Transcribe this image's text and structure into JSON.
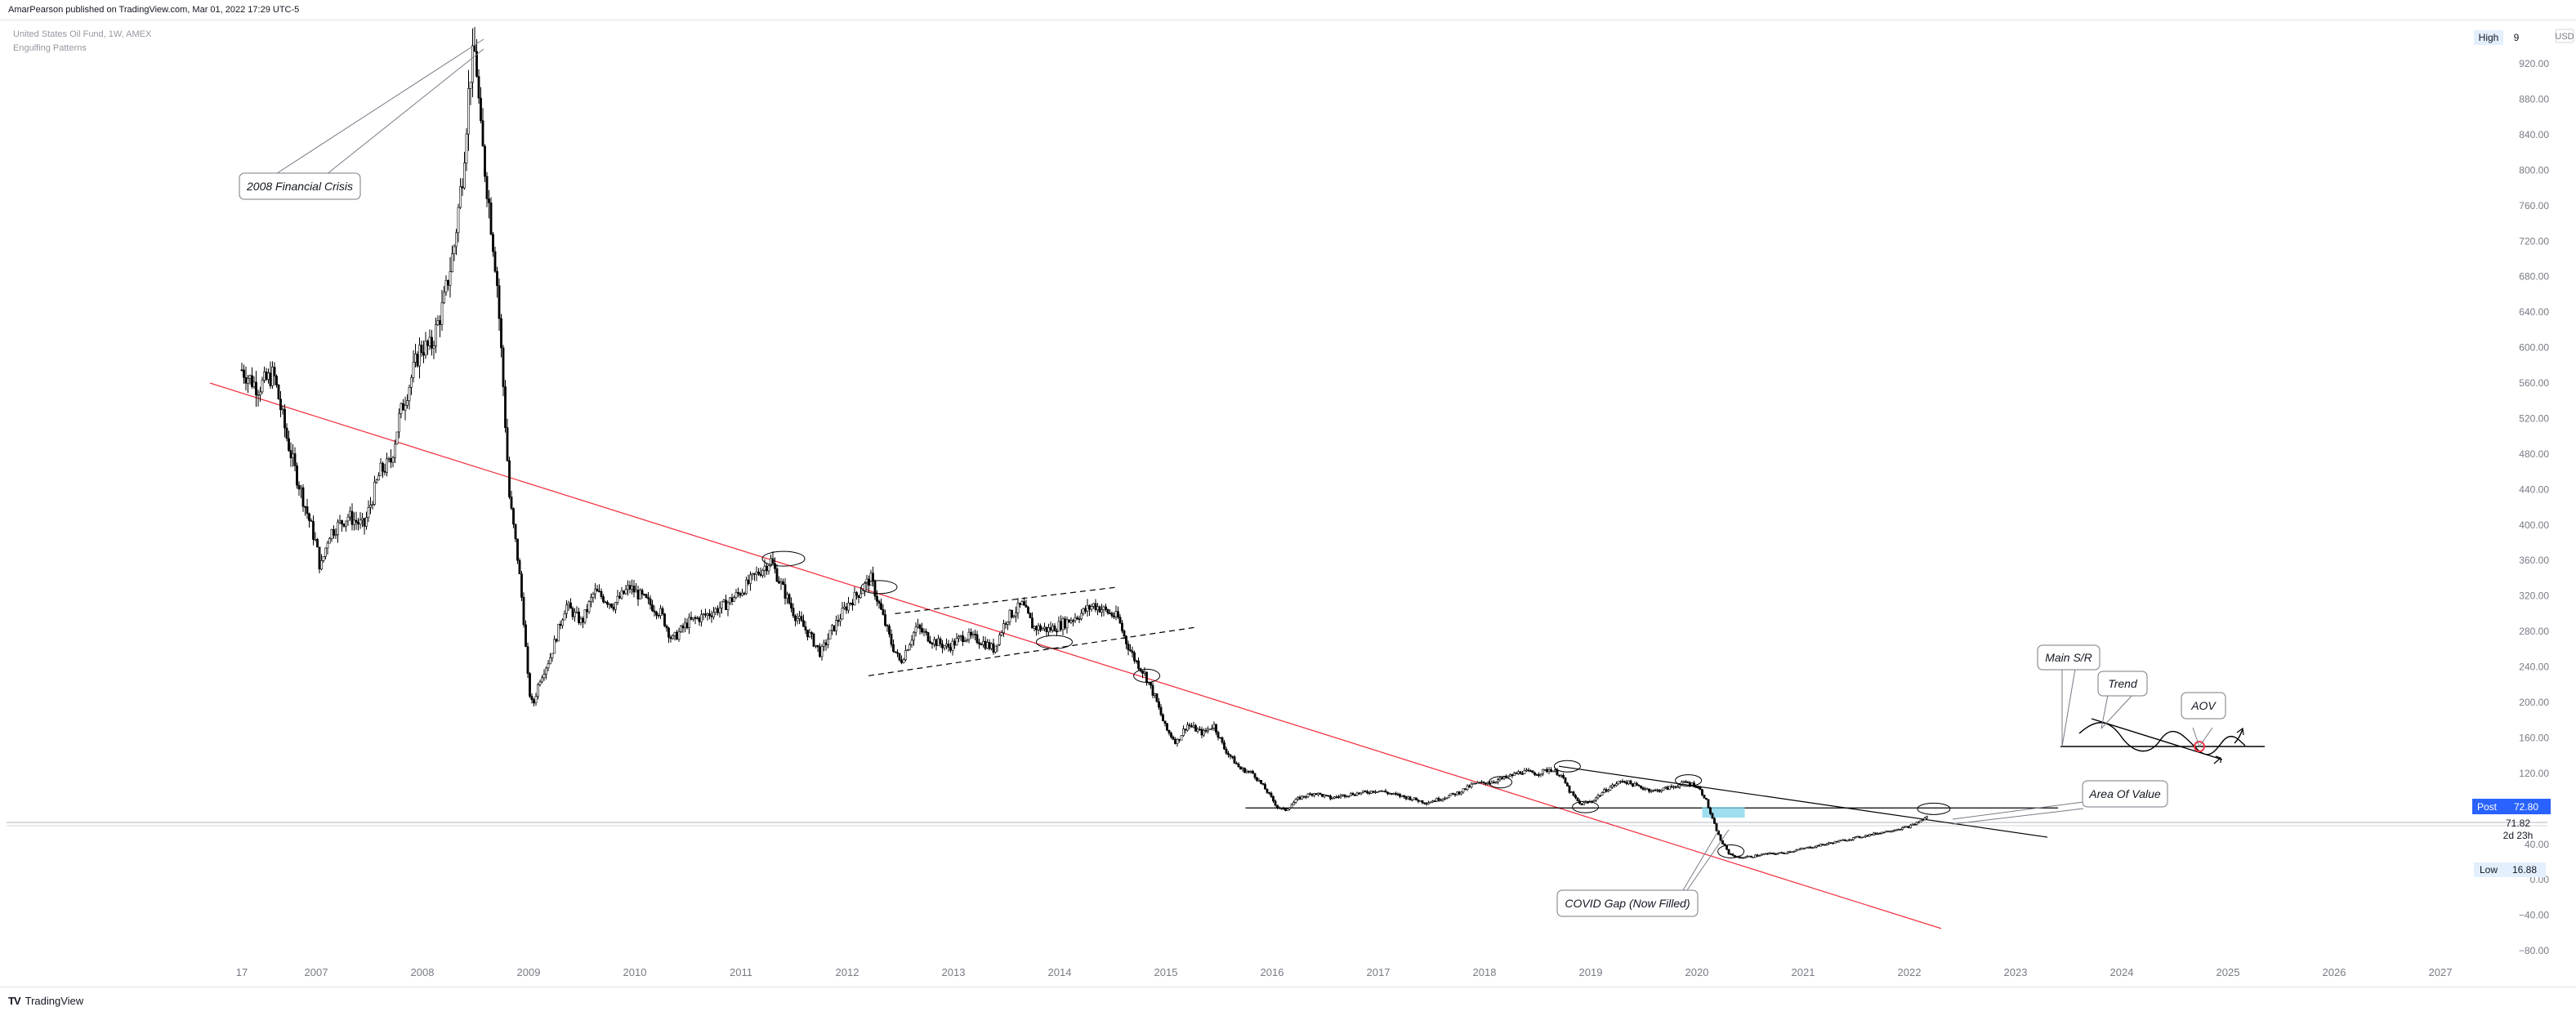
{
  "header": {
    "text": "AmarPearson published on TradingView.com, Mar 01, 2022 17:29 UTC-5"
  },
  "legend": {
    "symbol": "United States Oil Fund, 1W, AMEX",
    "indicator": "Engulfing Patterns"
  },
  "footer": {
    "brand": "TradingView",
    "logo": "TV"
  },
  "price_axis": {
    "currency": "USD",
    "high_label": "High",
    "high_value": "9",
    "post_label": "Post",
    "post_value": "72.80",
    "last_value": "71.82",
    "countdown": "2d 23h",
    "low_label": "Low",
    "low_value": "16.88"
  },
  "annotations": {
    "financial_crisis": "2008 Financial Crisis",
    "main_sr": "Main S/R",
    "trend": "Trend",
    "aov": "AOV",
    "area_of_value": "Area Of Value",
    "covid_gap": "COVID Gap (Now Filled)"
  },
  "colors": {
    "trendline": "#f23645",
    "candle": "#000000",
    "post_badge": "#2962ff",
    "gap_zone": "#7fd3ea",
    "axis_text": "#787b86",
    "badge_bg": "#e3effd"
  },
  "chart_data": {
    "type": "candlestick",
    "symbol": "USO",
    "timeframe": "1W",
    "x_ticks": [
      "17",
      "2007",
      "2008",
      "2009",
      "2010",
      "2011",
      "2012",
      "2013",
      "2014",
      "2015",
      "2016",
      "2017",
      "2018",
      "2019",
      "2020",
      "2021",
      "2022",
      "2023",
      "2024",
      "2025",
      "2026",
      "2027"
    ],
    "y_ticks": [
      920,
      880,
      840,
      800,
      760,
      720,
      680,
      640,
      600,
      560,
      520,
      480,
      440,
      400,
      360,
      320,
      280,
      240,
      200,
      160,
      120,
      40,
      0,
      -40,
      -80
    ],
    "y_tick_labels": [
      "920.00",
      "880.00",
      "840.00",
      "800.00",
      "760.00",
      "720.00",
      "680.00",
      "640.00",
      "600.00",
      "560.00",
      "520.00",
      "480.00",
      "440.00",
      "400.00",
      "360.00",
      "320.00",
      "280.00",
      "240.00",
      "200.00",
      "160.00",
      "120.00",
      "40.00",
      "0.00",
      "−40.00",
      "−80.00"
    ],
    "ylim": [
      -85,
      945
    ],
    "xlim": [
      2006.2,
      2027.5
    ],
    "price_path": [
      [
        2006.3,
        575
      ],
      [
        2006.45,
        555
      ],
      [
        2006.6,
        570
      ],
      [
        2006.72,
        500
      ],
      [
        2006.8,
        462
      ],
      [
        2006.9,
        420
      ],
      [
        2007.0,
        378
      ],
      [
        2007.04,
        350
      ],
      [
        2007.12,
        390
      ],
      [
        2007.3,
        410
      ],
      [
        2007.45,
        398
      ],
      [
        2007.6,
        460
      ],
      [
        2007.7,
        470
      ],
      [
        2007.78,
        520
      ],
      [
        2007.88,
        560
      ],
      [
        2007.98,
        600
      ],
      [
        2008.08,
        600
      ],
      [
        2008.2,
        650
      ],
      [
        2008.3,
        715
      ],
      [
        2008.38,
        800
      ],
      [
        2008.45,
        910
      ],
      [
        2008.5,
        935
      ],
      [
        2008.55,
        840
      ],
      [
        2008.62,
        770
      ],
      [
        2008.7,
        680
      ],
      [
        2008.76,
        560
      ],
      [
        2008.82,
        430
      ],
      [
        2008.9,
        360
      ],
      [
        2008.95,
        300
      ],
      [
        2009.0,
        215
      ],
      [
        2009.04,
        195
      ],
      [
        2009.1,
        225
      ],
      [
        2009.2,
        250
      ],
      [
        2009.35,
        310
      ],
      [
        2009.5,
        290
      ],
      [
        2009.62,
        325
      ],
      [
        2009.8,
        310
      ],
      [
        2009.95,
        330
      ],
      [
        2010.1,
        315
      ],
      [
        2010.25,
        300
      ],
      [
        2010.35,
        270
      ],
      [
        2010.5,
        290
      ],
      [
        2010.7,
        300
      ],
      [
        2010.85,
        310
      ],
      [
        2011.0,
        325
      ],
      [
        2011.15,
        345
      ],
      [
        2011.28,
        360
      ],
      [
        2011.35,
        340
      ],
      [
        2011.5,
        300
      ],
      [
        2011.65,
        275
      ],
      [
        2011.75,
        255
      ],
      [
        2011.85,
        280
      ],
      [
        2012.0,
        310
      ],
      [
        2012.12,
        325
      ],
      [
        2012.22,
        340
      ],
      [
        2012.3,
        310
      ],
      [
        2012.42,
        265
      ],
      [
        2012.5,
        245
      ],
      [
        2012.65,
        285
      ],
      [
        2012.8,
        270
      ],
      [
        2012.95,
        262
      ],
      [
        2013.1,
        275
      ],
      [
        2013.25,
        270
      ],
      [
        2013.38,
        260
      ],
      [
        2013.5,
        295
      ],
      [
        2013.65,
        310
      ],
      [
        2013.75,
        285
      ],
      [
        2013.9,
        282
      ],
      [
        2014.05,
        290
      ],
      [
        2014.2,
        300
      ],
      [
        2014.32,
        310
      ],
      [
        2014.45,
        302
      ],
      [
        2014.55,
        295
      ],
      [
        2014.62,
        270
      ],
      [
        2014.7,
        250
      ],
      [
        2014.8,
        232
      ],
      [
        2014.9,
        205
      ],
      [
        2015.0,
        170
      ],
      [
        2015.1,
        155
      ],
      [
        2015.2,
        175
      ],
      [
        2015.35,
        165
      ],
      [
        2015.45,
        175
      ],
      [
        2015.55,
        148
      ],
      [
        2015.7,
        125
      ],
      [
        2015.82,
        120
      ],
      [
        2015.95,
        100
      ],
      [
        2016.05,
        82
      ],
      [
        2016.12,
        78
      ],
      [
        2016.25,
        92
      ],
      [
        2016.4,
        98
      ],
      [
        2016.55,
        92
      ],
      [
        2016.7,
        96
      ],
      [
        2016.85,
        98
      ],
      [
        2017.0,
        101
      ],
      [
        2017.15,
        96
      ],
      [
        2017.3,
        92
      ],
      [
        2017.45,
        87
      ],
      [
        2017.6,
        92
      ],
      [
        2017.75,
        98
      ],
      [
        2017.9,
        108
      ],
      [
        2018.05,
        110
      ],
      [
        2018.2,
        115
      ],
      [
        2018.35,
        122
      ],
      [
        2018.5,
        120
      ],
      [
        2018.62,
        125
      ],
      [
        2018.72,
        118
      ],
      [
        2018.8,
        100
      ],
      [
        2018.9,
        85
      ],
      [
        2019.0,
        88
      ],
      [
        2019.15,
        102
      ],
      [
        2019.3,
        112
      ],
      [
        2019.45,
        105
      ],
      [
        2019.6,
        100
      ],
      [
        2019.75,
        104
      ],
      [
        2019.9,
        110
      ],
      [
        2020.0,
        106
      ],
      [
        2020.08,
        92
      ],
      [
        2020.14,
        70
      ],
      [
        2020.22,
        45
      ],
      [
        2020.3,
        30
      ],
      [
        2020.38,
        25
      ],
      [
        2020.5,
        26
      ],
      [
        2020.65,
        29
      ],
      [
        2020.8,
        30
      ],
      [
        2021.0,
        35
      ],
      [
        2021.2,
        40
      ],
      [
        2021.4,
        45
      ],
      [
        2021.6,
        50
      ],
      [
        2021.8,
        55
      ],
      [
        2022.0,
        60
      ],
      [
        2022.1,
        66
      ],
      [
        2022.18,
        72
      ]
    ],
    "lines": [
      {
        "name": "downtrend",
        "color": "red",
        "points": [
          [
            2006.0,
            560
          ],
          [
            2022.3,
            -55
          ]
        ]
      },
      {
        "name": "main-support",
        "color": "black",
        "points": [
          [
            2015.75,
            81
          ],
          [
            2023.4,
            81
          ]
        ]
      },
      {
        "name": "descending-resistance",
        "color": "black",
        "points": [
          [
            2018.7,
            128
          ],
          [
            2023.3,
            48
          ]
        ]
      },
      {
        "name": "channel-upper",
        "style": "dashed",
        "points": [
          [
            2012.45,
            300
          ],
          [
            2014.55,
            330
          ]
        ]
      },
      {
        "name": "channel-lower",
        "style": "dashed",
        "points": [
          [
            2012.2,
            230
          ],
          [
            2015.3,
            285
          ]
        ]
      }
    ],
    "gap_zone": {
      "x": [
        2020.05,
        2020.45
      ],
      "y": [
        70,
        82
      ]
    }
  }
}
